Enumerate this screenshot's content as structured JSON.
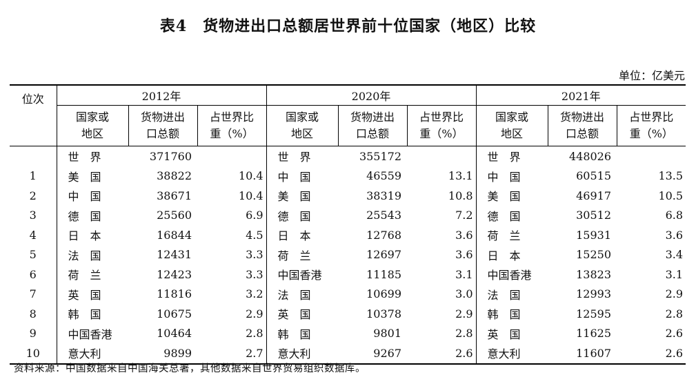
{
  "title": "表4　货物进出口总额居世界前十位国家（地区）比较",
  "unit": "单位：亿美元",
  "header": {
    "rank": "位次",
    "years": [
      "2012年",
      "2020年",
      "2021年"
    ],
    "col_name": [
      "国家或",
      "地区"
    ],
    "col_value": [
      "货物进出",
      "口总额"
    ],
    "col_share": [
      "占世界比",
      "重（%）"
    ]
  },
  "rows": [
    {
      "rank": "",
      "c2012": "世　界",
      "v2012": "371760",
      "p2012": "",
      "c2020": "世　界",
      "v2020": "355172",
      "p2020": "",
      "c2021": "世　界",
      "v2021": "448026",
      "p2021": ""
    },
    {
      "rank": "1",
      "c2012": "美　国",
      "v2012": "38822",
      "p2012": "10.4",
      "c2020": "中　国",
      "v2020": "46559",
      "p2020": "13.1",
      "c2021": "中　国",
      "v2021": "60515",
      "p2021": "13.5"
    },
    {
      "rank": "2",
      "c2012": "中　国",
      "v2012": "38671",
      "p2012": "10.4",
      "c2020": "美　国",
      "v2020": "38319",
      "p2020": "10.8",
      "c2021": "美　国",
      "v2021": "46917",
      "p2021": "10.5"
    },
    {
      "rank": "3",
      "c2012": "德　国",
      "v2012": "25560",
      "p2012": "6.9",
      "c2020": "德　国",
      "v2020": "25543",
      "p2020": "7.2",
      "c2021": "德　国",
      "v2021": "30512",
      "p2021": "6.8"
    },
    {
      "rank": "4",
      "c2012": "日　本",
      "v2012": "16844",
      "p2012": "4.5",
      "c2020": "日　本",
      "v2020": "12768",
      "p2020": "3.6",
      "c2021": "荷　兰",
      "v2021": "15931",
      "p2021": "3.6"
    },
    {
      "rank": "5",
      "c2012": "法　国",
      "v2012": "12431",
      "p2012": "3.3",
      "c2020": "荷　兰",
      "v2020": "12697",
      "p2020": "3.6",
      "c2021": "日　本",
      "v2021": "15250",
      "p2021": "3.4"
    },
    {
      "rank": "6",
      "c2012": "荷　兰",
      "v2012": "12423",
      "p2012": "3.3",
      "c2020": "中国香港",
      "v2020": "11185",
      "p2020": "3.1",
      "c2021": "中国香港",
      "v2021": "13823",
      "p2021": "3.1"
    },
    {
      "rank": "7",
      "c2012": "英　国",
      "v2012": "11816",
      "p2012": "3.2",
      "c2020": "法　国",
      "v2020": "10699",
      "p2020": "3.0",
      "c2021": "法　国",
      "v2021": "12993",
      "p2021": "2.9"
    },
    {
      "rank": "8",
      "c2012": "韩　国",
      "v2012": "10675",
      "p2012": "2.9",
      "c2020": "英　国",
      "v2020": "10378",
      "p2020": "2.9",
      "c2021": "韩　国",
      "v2021": "12595",
      "p2021": "2.8"
    },
    {
      "rank": "9",
      "c2012": "中国香港",
      "v2012": "10464",
      "p2012": "2.8",
      "c2020": "韩　国",
      "v2020": "9801",
      "p2020": "2.8",
      "c2021": "英　国",
      "v2021": "11625",
      "p2021": "2.6"
    },
    {
      "rank": "10",
      "c2012": "意大利",
      "v2012": "9899",
      "p2012": "2.7",
      "c2020": "意大利",
      "v2020": "9267",
      "p2020": "2.6",
      "c2021": "意大利",
      "v2021": "11607",
      "p2021": "2.6"
    }
  ],
  "source": "资料来源：中国数据来自中国海关总署，其他数据来自世界贸易组织数据库。"
}
